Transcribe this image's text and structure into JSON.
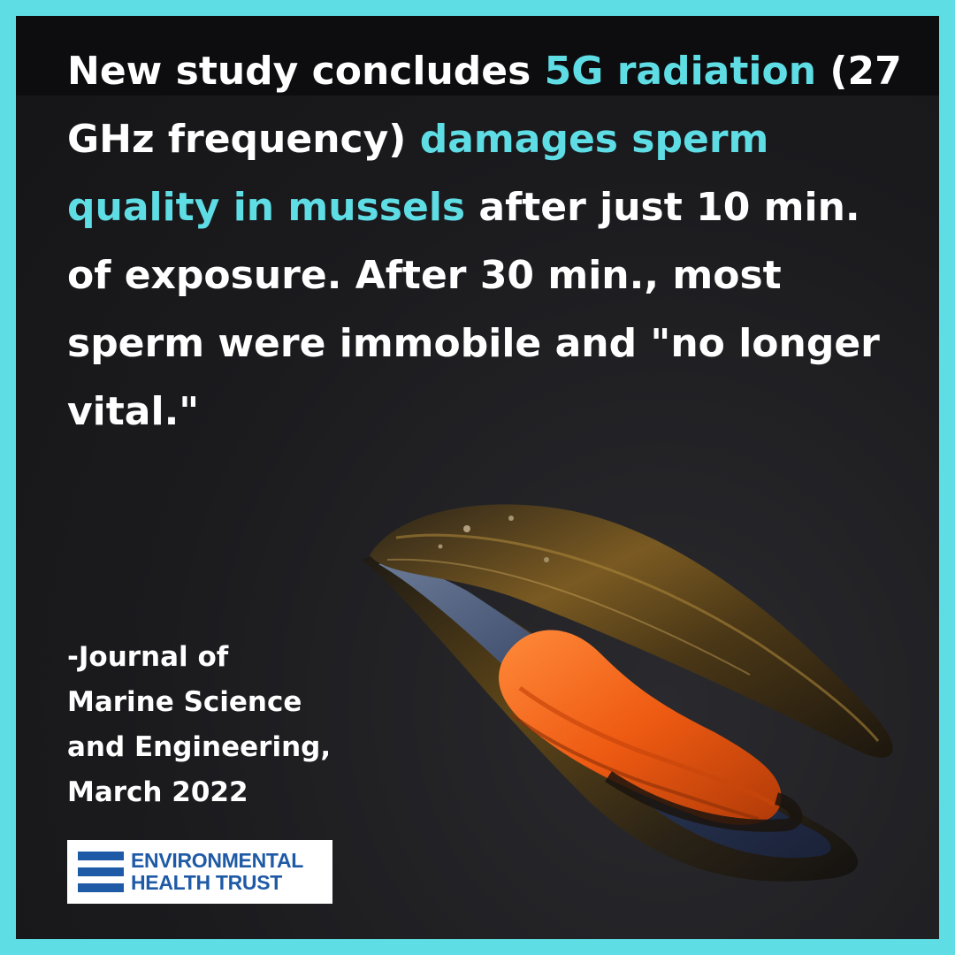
{
  "headline": {
    "part1": "New study concludes ",
    "highlight1": "5G radiation",
    "part2": " (27 GHz frequency) ",
    "highlight2": "damages sperm quality in mussels",
    "part3": " after just 10 min. of exposure. After 30 min., most sperm were immobile and \"no longer vital.\""
  },
  "citation": {
    "line1": "-Journal of",
    "line2": "Marine Science",
    "line3": "and Engineering,",
    "line4": "March 2022"
  },
  "logo": {
    "line1": "ENVIRONMENTAL",
    "line2": "HEALTH TRUST",
    "icon": "environmental-health-trust-logo-icon"
  },
  "colors": {
    "border": "#5fdde5",
    "highlight": "#5fdde5",
    "background": "#1b1b1e",
    "logo_blue": "#1f5aa6"
  }
}
